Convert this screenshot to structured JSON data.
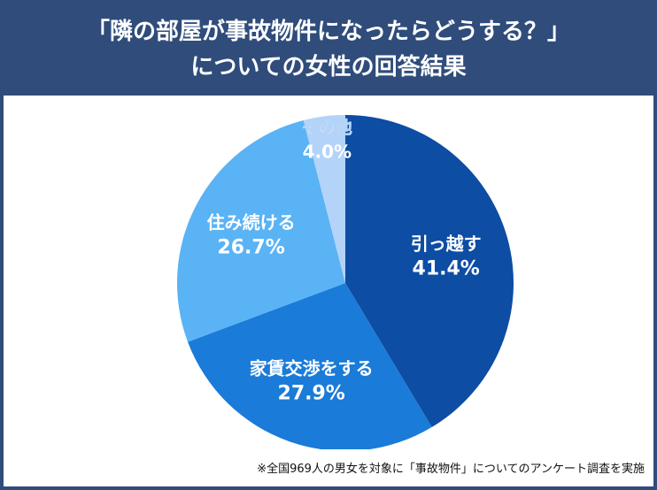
{
  "header": {
    "title_line1": "「隣の部屋が事故物件になったらどうする？」",
    "title_line2": "についての女性の回答結果"
  },
  "footnote": "※全国969人の男女を対象に「事故物件」についてのアンケート調査を実施",
  "colors": {
    "header_bg": "#2f4c7b",
    "label_text": "#ffffff"
  },
  "chart_data": {
    "type": "pie",
    "title": "「隣の部屋が事故物件になったらどうする？」についての女性の回答結果",
    "unit": "%",
    "start": "12 o'clock",
    "direction": "clockwise",
    "slices": [
      {
        "label": "引っ越す",
        "value": 41.4,
        "value_label": "41.4%",
        "color": "#0d4da3"
      },
      {
        "label": "家賃交渉をする",
        "value": 27.9,
        "value_label": "27.9%",
        "color": "#1a7bd8"
      },
      {
        "label": "住み続ける",
        "value": 26.7,
        "value_label": "26.7%",
        "color": "#5ab3f5"
      },
      {
        "label": "その他",
        "value": 4.0,
        "value_label": "4.0%",
        "color": "#b4d3f8"
      }
    ]
  }
}
